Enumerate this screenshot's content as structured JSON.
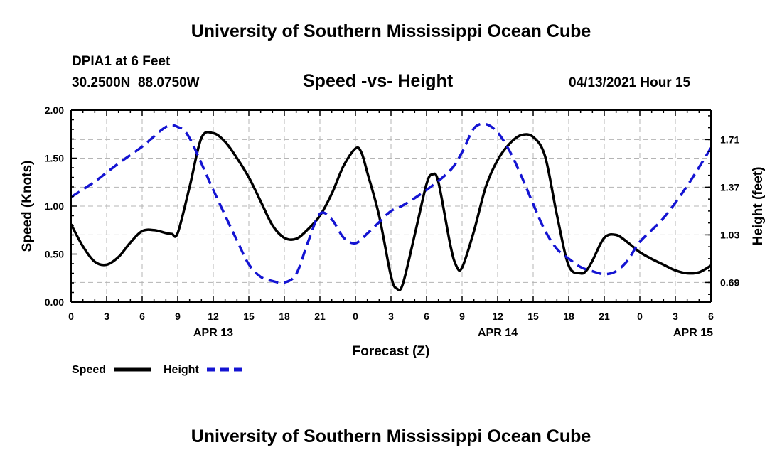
{
  "header": {
    "title": "University of Southern Mississippi Ocean Cube",
    "station_name": "DPIA1 at 6 Feet",
    "station_coords": "30.2500N  88.0750W",
    "plot_title": "Speed -vs- Height",
    "run_date": "04/13/2021 Hour 15"
  },
  "footer": {
    "title": "University of Southern Mississippi Ocean Cube"
  },
  "colors": {
    "speed": "#000000",
    "height": "#1414d2",
    "grid": "#b4b4b4"
  },
  "chart_data": {
    "type": "line",
    "x_unit": "hours since APR 13 00Z",
    "xlim": [
      0,
      54
    ],
    "x_ticks": [
      0,
      3,
      6,
      9,
      12,
      15,
      18,
      21,
      24,
      27,
      30,
      33,
      36,
      39,
      42,
      45,
      48,
      51,
      54
    ],
    "x_tick_labels": [
      "0",
      "3",
      "6",
      "9",
      "12",
      "15",
      "18",
      "21",
      "0",
      "3",
      "6",
      "9",
      "12",
      "15",
      "18",
      "21",
      "0",
      "3",
      "6"
    ],
    "date_labels": [
      {
        "x": 12,
        "label": "APR 13"
      },
      {
        "x": 36,
        "label": "APR 14"
      },
      {
        "x": 52.5,
        "label": "APR 15"
      }
    ],
    "xlabel": "Forecast (Z)",
    "left_axis": {
      "label": "Speed (Knots)",
      "range": [
        0,
        2
      ],
      "ticks": [
        0,
        0.5,
        1,
        1.5,
        2
      ],
      "tick_labels": [
        "0.00",
        "0.50",
        "1.00",
        "1.50",
        "2.00"
      ]
    },
    "right_axis": {
      "label": "Height (feet)",
      "range": [
        0.55,
        1.92
      ],
      "ticks": [
        0.69,
        1.03,
        1.37,
        1.71
      ],
      "tick_labels": [
        "0.69",
        "1.03",
        "1.37",
        "1.71"
      ]
    },
    "grid": true,
    "series": [
      {
        "name": "Speed",
        "axis": "left",
        "style": "solid",
        "x": [
          0,
          1,
          2,
          3,
          4,
          5,
          6,
          7,
          8,
          8.5,
          9,
          10,
          11,
          12,
          13,
          14,
          15,
          16,
          17,
          18,
          19,
          20,
          21,
          22,
          23,
          24,
          24.5,
          25,
          26,
          27,
          27.5,
          28,
          29,
          30,
          30.5,
          31,
          32,
          32.5,
          33,
          34,
          35,
          36,
          37,
          38,
          39,
          40,
          41,
          42,
          43,
          43.5,
          44,
          45,
          46,
          47,
          48,
          49,
          50,
          51,
          52,
          53,
          54
        ],
        "values": [
          0.81,
          0.58,
          0.42,
          0.39,
          0.47,
          0.62,
          0.74,
          0.75,
          0.72,
          0.71,
          0.72,
          1.2,
          1.71,
          1.76,
          1.67,
          1.5,
          1.3,
          1.05,
          0.8,
          0.67,
          0.66,
          0.76,
          0.9,
          1.13,
          1.42,
          1.6,
          1.56,
          1.35,
          0.9,
          0.27,
          0.14,
          0.19,
          0.7,
          1.23,
          1.33,
          1.25,
          0.6,
          0.38,
          0.36,
          0.74,
          1.2,
          1.48,
          1.65,
          1.74,
          1.72,
          1.52,
          0.91,
          0.38,
          0.3,
          0.33,
          0.43,
          0.67,
          0.7,
          0.62,
          0.52,
          0.45,
          0.39,
          0.33,
          0.3,
          0.31,
          0.38
        ]
      },
      {
        "name": "Height",
        "axis": "right",
        "style": "dashed",
        "x": [
          0,
          2,
          4,
          6,
          8,
          9,
          10,
          12,
          14,
          15,
          16,
          17,
          18,
          19,
          20,
          21,
          22,
          23,
          24,
          25,
          26,
          27,
          28,
          30,
          32,
          33,
          34,
          35,
          36,
          37,
          38,
          39,
          40,
          41,
          42,
          43,
          44,
          45,
          46,
          47,
          48,
          50,
          52,
          54
        ],
        "values": [
          1.3,
          1.41,
          1.54,
          1.66,
          1.8,
          1.8,
          1.72,
          1.35,
          0.99,
          0.82,
          0.73,
          0.7,
          0.69,
          0.75,
          0.98,
          1.18,
          1.14,
          1.01,
          0.97,
          1.04,
          1.12,
          1.2,
          1.24,
          1.35,
          1.49,
          1.62,
          1.79,
          1.82,
          1.76,
          1.63,
          1.45,
          1.25,
          1.06,
          0.93,
          0.86,
          0.8,
          0.77,
          0.75,
          0.77,
          0.85,
          0.98,
          1.15,
          1.38,
          1.65
        ]
      }
    ],
    "legend": {
      "placement": "bottom-left",
      "entries": [
        "Speed",
        "Height"
      ]
    }
  }
}
